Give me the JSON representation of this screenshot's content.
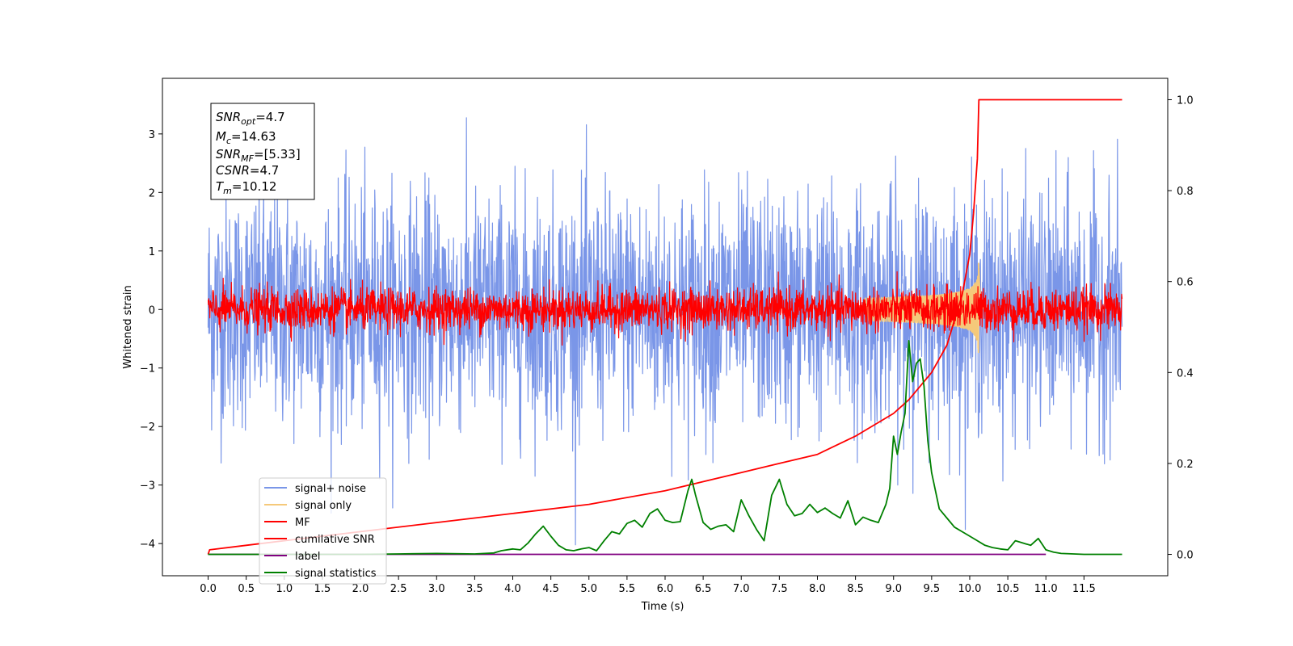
{
  "chart_data": {
    "type": "line",
    "xlabel": "Time (s)",
    "ylabel": "Whitened strain",
    "xlim": [
      -0.6,
      12.6
    ],
    "ylim": [
      -4.55,
      3.95
    ],
    "y2lim": [
      -0.047,
      1.047
    ],
    "xticks": [
      "0.0",
      "0.5",
      "1.0",
      "1.5",
      "2.0",
      "2.5",
      "3.0",
      "3.5",
      "4.0",
      "4.5",
      "5.0",
      "5.5",
      "6.0",
      "6.5",
      "7.0",
      "7.5",
      "8.0",
      "8.5",
      "9.0",
      "9.5",
      "10.0",
      "10.5",
      "11.0",
      "11.5"
    ],
    "yticks": [
      "−4",
      "−3",
      "−2",
      "−1",
      "0",
      "1",
      "2",
      "3"
    ],
    "y2ticks": [
      "0.0",
      "0.2",
      "0.4",
      "0.6",
      "0.8",
      "1.0"
    ],
    "annotation": {
      "snr_opt_label": "SNR",
      "snr_opt_sub": "opt",
      "snr_opt_value": "=4.7",
      "mc_label": "M",
      "mc_sub": "c",
      "mc_value": "=14.63",
      "snr_mf_label": "SNR",
      "snr_mf_sub": "MF",
      "snr_mf_value": "=[5.33]",
      "csnr_label": "CSNR",
      "csnr_value": "=4.7",
      "tm_label": "T",
      "tm_sub": "m",
      "tm_value": "=10.12"
    },
    "legend": {
      "placement": "lower-left",
      "entries": [
        {
          "label": "signal+ noise",
          "color": "#7a96e8"
        },
        {
          "label": "signal only",
          "color": "#f5c97a"
        },
        {
          "label": "MF",
          "color": "#ff0000"
        },
        {
          "label": "cumilative SNR",
          "color": "#ff0000"
        },
        {
          "label": "label",
          "color": "#800080"
        },
        {
          "label": "signal statistics",
          "color": "#008000"
        }
      ]
    },
    "series": [
      {
        "name": "signal+ noise",
        "axis": "left",
        "style": "noise",
        "t_start": 0.0,
        "t_end": 12.0,
        "sigma": 1.0,
        "color": "#7a96e8"
      },
      {
        "name": "signal only",
        "axis": "left",
        "style": "chirp",
        "t_merger": 10.12,
        "peak_amplitude": 0.85,
        "color": "#f5c97a"
      },
      {
        "name": "MF",
        "axis": "left",
        "style": "noise",
        "t_start": 0.0,
        "t_end": 12.0,
        "sigma": 0.18,
        "color": "#ff0000"
      },
      {
        "name": "cumilative SNR",
        "axis": "right",
        "color": "#ff0000",
        "x": [
          0.0,
          0.02,
          0.5,
          1.0,
          2.0,
          3.0,
          4.0,
          5.0,
          6.0,
          7.0,
          7.5,
          8.0,
          8.5,
          9.0,
          9.2,
          9.5,
          9.7,
          9.9,
          10.0,
          10.05,
          10.1,
          10.12,
          10.13,
          12.0
        ],
        "y": [
          0.0,
          0.01,
          0.02,
          0.03,
          0.05,
          0.07,
          0.09,
          0.11,
          0.14,
          0.18,
          0.2,
          0.22,
          0.26,
          0.31,
          0.34,
          0.4,
          0.46,
          0.57,
          0.66,
          0.75,
          0.87,
          1.0,
          1.0,
          1.0
        ]
      },
      {
        "name": "label",
        "axis": "right",
        "color": "#800080",
        "x": [
          0.0,
          11.0
        ],
        "y": [
          0.0,
          0.0
        ]
      },
      {
        "name": "signal statistics",
        "axis": "right",
        "color": "#008000",
        "x": [
          0.0,
          0.5,
          1.0,
          1.5,
          2.0,
          2.5,
          3.0,
          3.5,
          3.75,
          3.85,
          4.0,
          4.1,
          4.2,
          4.3,
          4.4,
          4.5,
          4.6,
          4.7,
          4.8,
          4.9,
          5.0,
          5.1,
          5.2,
          5.3,
          5.4,
          5.5,
          5.6,
          5.7,
          5.8,
          5.9,
          6.0,
          6.1,
          6.2,
          6.3,
          6.35,
          6.4,
          6.5,
          6.6,
          6.7,
          6.8,
          6.9,
          7.0,
          7.1,
          7.2,
          7.3,
          7.4,
          7.5,
          7.6,
          7.7,
          7.8,
          7.9,
          8.0,
          8.1,
          8.2,
          8.3,
          8.4,
          8.5,
          8.6,
          8.7,
          8.8,
          8.9,
          8.95,
          9.0,
          9.05,
          9.1,
          9.15,
          9.2,
          9.25,
          9.3,
          9.35,
          9.4,
          9.45,
          9.5,
          9.6,
          9.7,
          9.8,
          9.9,
          10.0,
          10.1,
          10.2,
          10.3,
          10.4,
          10.5,
          10.6,
          10.7,
          10.8,
          10.9,
          11.0,
          11.1,
          11.2,
          11.5,
          12.0
        ],
        "y": [
          0.0,
          0.0,
          0.0,
          0.0,
          0.0,
          0.001,
          0.002,
          0.001,
          0.003,
          0.008,
          0.012,
          0.01,
          0.025,
          0.045,
          0.062,
          0.04,
          0.02,
          0.01,
          0.008,
          0.012,
          0.015,
          0.008,
          0.03,
          0.05,
          0.045,
          0.068,
          0.075,
          0.06,
          0.09,
          0.1,
          0.075,
          0.07,
          0.072,
          0.14,
          0.165,
          0.13,
          0.07,
          0.055,
          0.062,
          0.065,
          0.05,
          0.12,
          0.085,
          0.055,
          0.03,
          0.13,
          0.165,
          0.11,
          0.085,
          0.09,
          0.11,
          0.092,
          0.102,
          0.09,
          0.08,
          0.118,
          0.065,
          0.082,
          0.075,
          0.07,
          0.11,
          0.145,
          0.26,
          0.22,
          0.27,
          0.31,
          0.47,
          0.38,
          0.42,
          0.43,
          0.37,
          0.25,
          0.18,
          0.1,
          0.08,
          0.06,
          0.05,
          0.04,
          0.03,
          0.02,
          0.015,
          0.012,
          0.01,
          0.03,
          0.025,
          0.02,
          0.035,
          0.01,
          0.005,
          0.002,
          0.0,
          0.0
        ]
      }
    ]
  }
}
